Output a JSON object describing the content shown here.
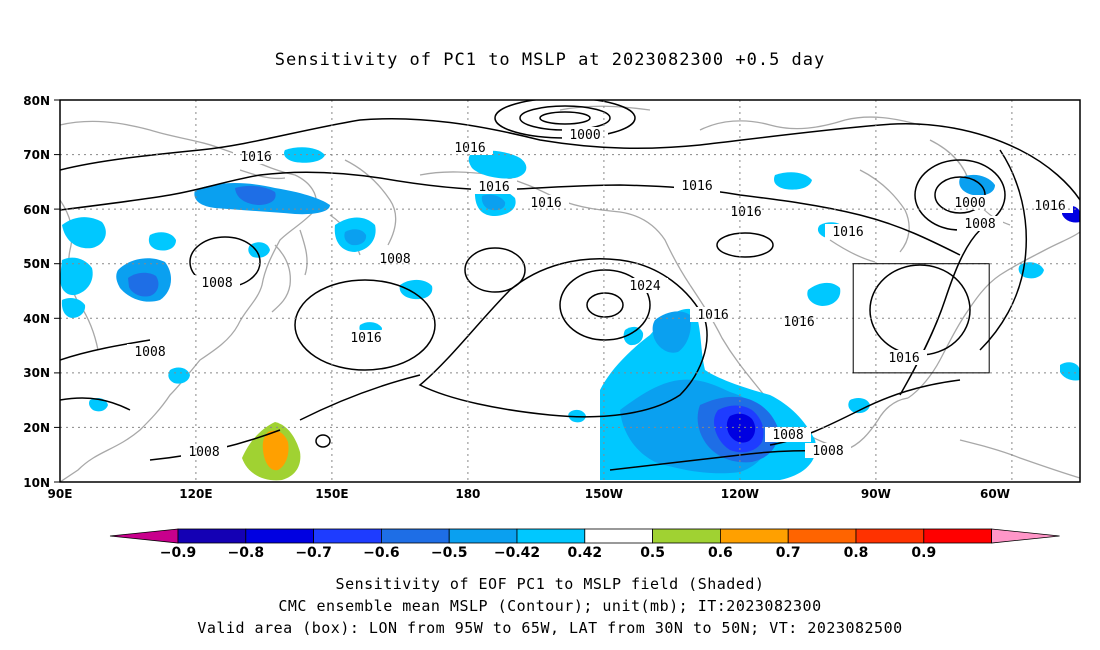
{
  "title": "Sensitivity of PC1 to MSLP at 2023082300 +0.5 day",
  "lat_ticks": [
    "80N",
    "70N",
    "60N",
    "50N",
    "40N",
    "30N",
    "20N",
    "10N"
  ],
  "lon_ticks": [
    "90E",
    "120E",
    "150E",
    "180",
    "150W",
    "120W",
    "90W",
    "60W"
  ],
  "contour_labels": [
    {
      "id": "c1",
      "text": "1000"
    },
    {
      "id": "c2",
      "text": "1016"
    },
    {
      "id": "c3",
      "text": "1016"
    },
    {
      "id": "c4",
      "text": "1016"
    },
    {
      "id": "c5",
      "text": "1016"
    },
    {
      "id": "c6",
      "text": "1016"
    },
    {
      "id": "c7",
      "text": "1016"
    },
    {
      "id": "c8",
      "text": "1000"
    },
    {
      "id": "c9",
      "text": "1008"
    },
    {
      "id": "c10",
      "text": "1016"
    },
    {
      "id": "c11",
      "text": "1016"
    },
    {
      "id": "c12",
      "text": "1008"
    },
    {
      "id": "c13",
      "text": "1008"
    },
    {
      "id": "c14",
      "text": "1024"
    },
    {
      "id": "c15",
      "text": "1016"
    },
    {
      "id": "c16",
      "text": "1016"
    },
    {
      "id": "c17",
      "text": "1016"
    },
    {
      "id": "c18",
      "text": "1016"
    },
    {
      "id": "c19",
      "text": "1008"
    },
    {
      "id": "c20",
      "text": "1008"
    },
    {
      "id": "c21",
      "text": "1008"
    },
    {
      "id": "c22",
      "text": "1008"
    },
    {
      "id": "c23",
      "text": "1016"
    }
  ],
  "colorbar": {
    "labels": [
      "-0.9",
      "-0.8",
      "-0.7",
      "-0.6",
      "-0.5",
      "-0.42",
      "0.42",
      "0.5",
      "0.6",
      "0.7",
      "0.8",
      "0.9"
    ],
    "colors": [
      "#c8008c",
      "#1400b4",
      "#0000e1",
      "#1e3cff",
      "#1e6ee6",
      "#0aa0f0",
      "#00c8ff",
      "#ffffff",
      "#a0d232",
      "#ffa000",
      "#ff6400",
      "#ff3200",
      "#ff0000",
      "#ff96c8"
    ]
  },
  "valid_box": {
    "lon_min": -95,
    "lon_max": -65,
    "lat_min": 30,
    "lat_max": 50
  },
  "footer": {
    "line1": "Sensitivity of EOF PC1 to MSLP field (Shaded)",
    "line2": "CMC ensemble mean MSLP (Contour); unit(mb); IT:2023082300",
    "line3": "Valid area (box): LON from 95W to 65W, LAT from 30N to 50N; VT: 2023082500"
  }
}
